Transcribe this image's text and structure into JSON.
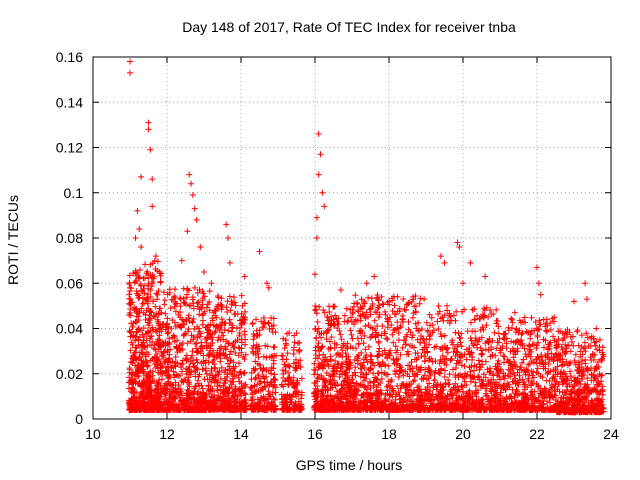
{
  "chart_data": {
    "type": "scatter",
    "title": "Day 148 of 2017, Rate Of TEC Index for receiver tnba",
    "xlabel": "GPS time / hours",
    "ylabel": "ROTI / TECUs",
    "xlim": [
      10,
      24
    ],
    "ylim": [
      0,
      0.16
    ],
    "xticks": [
      "10",
      "12",
      "14",
      "16",
      "18",
      "20",
      "22",
      "24"
    ],
    "yticks": [
      "0",
      "0.02",
      "0.04",
      "0.06",
      "0.08",
      "0.1",
      "0.12",
      "0.14",
      "0.16"
    ],
    "grid": true,
    "marker": "+",
    "color": "#ff0000",
    "series": [
      {
        "name": "ROTI",
        "x": [
          11.0,
          11.0,
          11.3,
          11.3,
          11.5,
          11.5,
          11.55,
          11.6,
          11.6,
          11.2,
          11.25,
          11.15,
          11.7,
          11.8,
          12.4,
          12.6,
          12.65,
          12.7,
          12.75,
          12.8,
          12.55,
          12.9,
          13.0,
          13.2,
          13.6,
          13.65,
          13.7,
          14.1,
          14.5,
          14.7,
          14.75,
          15.3,
          16.0,
          16.05,
          16.1,
          16.15,
          16.1,
          16.2,
          16.25,
          16.05,
          16.7,
          17.4,
          17.6,
          17.8,
          18.0,
          19.4,
          19.5,
          19.85,
          19.9,
          20.0,
          20.2,
          20.6,
          21.4,
          22.0,
          22.05,
          22.1,
          23.0,
          23.3,
          23.35,
          23.6,
          23.7
        ],
        "y": [
          0.158,
          0.153,
          0.107,
          0.076,
          0.131,
          0.128,
          0.119,
          0.106,
          0.094,
          0.092,
          0.084,
          0.08,
          0.072,
          0.065,
          0.07,
          0.108,
          0.104,
          0.099,
          0.093,
          0.088,
          0.083,
          0.076,
          0.065,
          0.06,
          0.086,
          0.08,
          0.069,
          0.063,
          0.074,
          0.06,
          0.058,
          0.038,
          0.064,
          0.089,
          0.126,
          0.117,
          0.108,
          0.1,
          0.094,
          0.08,
          0.057,
          0.06,
          0.063,
          0.054,
          0.052,
          0.072,
          0.069,
          0.078,
          0.076,
          0.06,
          0.069,
          0.063,
          0.047,
          0.067,
          0.06,
          0.055,
          0.052,
          0.06,
          0.053,
          0.04,
          0.035
        ]
      }
    ],
    "dense_clusters": [
      {
        "x_start": 10.97,
        "x_end": 11.85,
        "y_low": 0.004,
        "y_high": 0.07,
        "count": 700
      },
      {
        "x_start": 11.85,
        "x_end": 13.2,
        "y_low": 0.004,
        "y_high": 0.058,
        "count": 650
      },
      {
        "x_start": 13.2,
        "x_end": 14.15,
        "y_low": 0.004,
        "y_high": 0.055,
        "count": 420
      },
      {
        "x_start": 14.25,
        "x_end": 14.95,
        "y_low": 0.004,
        "y_high": 0.045,
        "count": 230
      },
      {
        "x_start": 15.1,
        "x_end": 15.65,
        "y_low": 0.004,
        "y_high": 0.038,
        "count": 180
      },
      {
        "x_start": 15.97,
        "x_end": 17.0,
        "y_low": 0.004,
        "y_high": 0.05,
        "count": 480
      },
      {
        "x_start": 17.0,
        "x_end": 19.0,
        "y_low": 0.004,
        "y_high": 0.055,
        "count": 800
      },
      {
        "x_start": 19.0,
        "x_end": 20.9,
        "y_low": 0.004,
        "y_high": 0.05,
        "count": 650
      },
      {
        "x_start": 20.9,
        "x_end": 22.5,
        "y_low": 0.004,
        "y_high": 0.045,
        "count": 600
      },
      {
        "x_start": 22.5,
        "x_end": 23.8,
        "y_low": 0.003,
        "y_high": 0.04,
        "count": 520
      }
    ]
  }
}
